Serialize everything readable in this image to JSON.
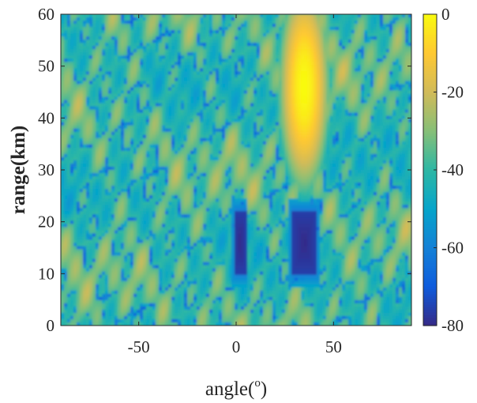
{
  "chart_data": {
    "type": "heatmap",
    "xlabel": "angle(",
    "xlabel_sup": "o",
    "xlabel_end": ")",
    "ylabel": "range(km)",
    "xlim": [
      -90,
      90
    ],
    "ylim": [
      0,
      60
    ],
    "xticks": [
      -50,
      0,
      50
    ],
    "xtick_labels": [
      "-50",
      "0",
      "50"
    ],
    "yticks": [
      0,
      10,
      20,
      30,
      40,
      50,
      60
    ],
    "ytick_labels": [
      "0",
      "10",
      "20",
      "30",
      "40",
      "50",
      "60"
    ],
    "colorbar": {
      "range": [
        -80,
        0
      ],
      "ticks": [
        0,
        -20,
        -40,
        -60,
        -80
      ],
      "tick_labels": [
        "0",
        "-20",
        "-40",
        "-60",
        "-80"
      ],
      "colormap": "parula"
    },
    "features": {
      "nulls": [
        {
          "x": [
            -1,
            5
          ],
          "y": [
            10,
            22
          ],
          "value": -80
        },
        {
          "x": [
            29,
            41
          ],
          "y": [
            10,
            22
          ],
          "value": -80
        }
      ],
      "peak": {
        "x": 35,
        "y": 46,
        "value": 0
      }
    },
    "grid": false
  },
  "colors": {
    "parula": [
      "#352a87",
      "#0f5cdd",
      "#1481d6",
      "#06a4ca",
      "#2eb7a4",
      "#87bf77",
      "#d1bb59",
      "#fec832",
      "#f9fb0e"
    ]
  }
}
